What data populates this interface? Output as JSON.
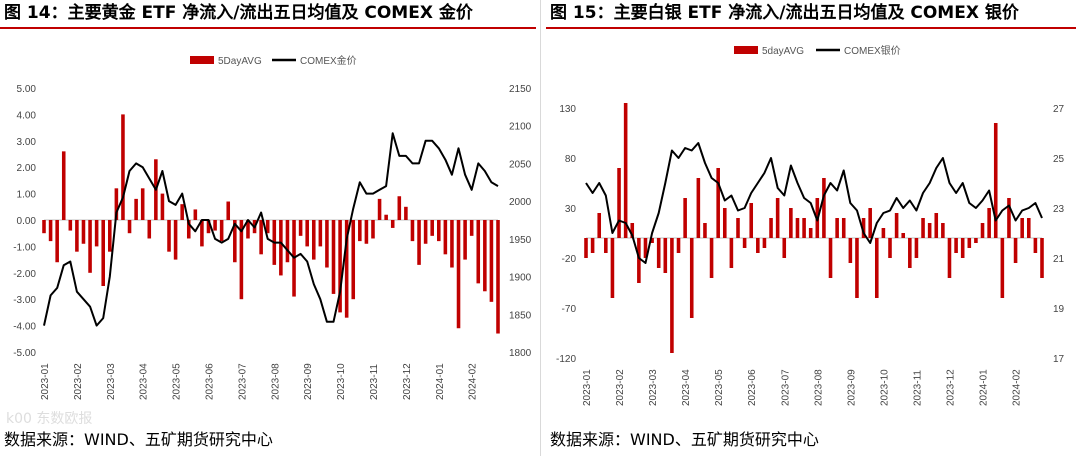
{
  "panels": [
    {
      "title": "图 14：主要黄金 ETF 净流入/流出五日均值及 COMEX 金价",
      "source": "数据来源：WIND、五矿期货研究中心"
    },
    {
      "title": "图 15：主要白银 ETF 净流入/流出五日均值及 COMEX 银价",
      "source": "数据来源：WIND、五矿期货研究中心"
    }
  ],
  "watermark": "k00 东数欧报",
  "chart_data": [
    {
      "type": "bar+line",
      "legend": [
        "5DayAVG",
        "COMEX金价"
      ],
      "legend_position": "top-center",
      "colors": {
        "bar": "#c00000",
        "line": "#000000"
      },
      "x_ticks": [
        "2023-01",
        "2023-02",
        "2023-03",
        "2023-04",
        "2023-05",
        "2023-06",
        "2023-07",
        "2023-08",
        "2023-09",
        "2023-10",
        "2023-11",
        "2023-12",
        "2024-01",
        "2024-02"
      ],
      "y_left": {
        "min": -5,
        "max": 5,
        "ticks": [
          "5.00",
          "4.00",
          "3.00",
          "2.00",
          "1.00",
          "0.00",
          "-1.00",
          "-2.00",
          "-3.00",
          "-4.00",
          "-5.00"
        ]
      },
      "y_right": {
        "min": 1800,
        "max": 2150,
        "ticks": [
          "2150",
          "2100",
          "2050",
          "2000",
          "1950",
          "1900",
          "1850",
          "1800"
        ]
      },
      "series": [
        {
          "name": "5DayAVG",
          "axis": "left",
          "type": "bar",
          "x": [
            0.0,
            0.2,
            0.4,
            0.6,
            0.8,
            1.0,
            1.2,
            1.4,
            1.6,
            1.8,
            2.0,
            2.2,
            2.4,
            2.6,
            2.8,
            3.0,
            3.2,
            3.4,
            3.6,
            3.8,
            4.0,
            4.2,
            4.4,
            4.6,
            4.8,
            5.0,
            5.2,
            5.4,
            5.6,
            5.8,
            6.0,
            6.2,
            6.4,
            6.6,
            6.8,
            7.0,
            7.2,
            7.4,
            7.6,
            7.8,
            8.0,
            8.2,
            8.4,
            8.6,
            8.8,
            9.0,
            9.2,
            9.4,
            9.6,
            9.8,
            10.0,
            10.2,
            10.4,
            10.6,
            10.8,
            11.0,
            11.2,
            11.4,
            11.6,
            11.8,
            12.0,
            12.2,
            12.4,
            12.6,
            12.8,
            13.0,
            13.2,
            13.4,
            13.6,
            13.8
          ],
          "values": [
            -0.5,
            -0.8,
            -1.6,
            2.6,
            -0.4,
            -1.2,
            -0.9,
            -2.0,
            -1.0,
            -2.5,
            -1.2,
            1.2,
            4.0,
            -0.5,
            0.8,
            1.2,
            -0.7,
            2.3,
            1.0,
            -1.2,
            -1.5,
            0.6,
            -0.7,
            0.4,
            -1.0,
            -0.5,
            -0.4,
            -0.8,
            0.7,
            -1.6,
            -3.0,
            -0.7,
            -0.5,
            -1.3,
            -0.5,
            -1.7,
            -2.1,
            -1.6,
            -2.9,
            -0.6,
            -1.0,
            -1.5,
            -1.0,
            -1.8,
            -2.8,
            -3.5,
            -3.7,
            -3.0,
            -0.8,
            -0.9,
            -0.7,
            0.8,
            0.2,
            -0.3,
            0.9,
            0.5,
            -0.8,
            -1.7,
            -0.9,
            -0.6,
            -0.8,
            -1.3,
            -1.8,
            -4.1,
            -1.5,
            -0.6,
            -2.4,
            -2.7,
            -3.1,
            -4.3
          ]
        },
        {
          "name": "COMEX金价",
          "axis": "right",
          "type": "line",
          "x": [
            0.0,
            0.2,
            0.4,
            0.6,
            0.8,
            1.0,
            1.2,
            1.4,
            1.6,
            1.8,
            2.0,
            2.2,
            2.4,
            2.6,
            2.8,
            3.0,
            3.2,
            3.4,
            3.6,
            3.8,
            4.0,
            4.2,
            4.4,
            4.6,
            4.8,
            5.0,
            5.2,
            5.4,
            5.6,
            5.8,
            6.0,
            6.2,
            6.4,
            6.6,
            6.8,
            7.0,
            7.2,
            7.4,
            7.6,
            7.8,
            8.0,
            8.2,
            8.4,
            8.6,
            8.8,
            9.0,
            9.2,
            9.4,
            9.6,
            9.8,
            10.0,
            10.2,
            10.4,
            10.6,
            10.8,
            11.0,
            11.2,
            11.4,
            11.6,
            11.8,
            12.0,
            12.2,
            12.4,
            12.6,
            12.8,
            13.0,
            13.2,
            13.4,
            13.6,
            13.8
          ],
          "values": [
            1835,
            1875,
            1885,
            1915,
            1920,
            1880,
            1870,
            1860,
            1835,
            1845,
            1900,
            1985,
            2005,
            2040,
            2050,
            2045,
            2030,
            2015,
            2040,
            2000,
            1995,
            2010,
            1970,
            1960,
            1975,
            1975,
            1950,
            1945,
            1950,
            1970,
            1960,
            1975,
            1965,
            1985,
            1950,
            1945,
            1945,
            1935,
            1925,
            1930,
            1920,
            1890,
            1870,
            1840,
            1840,
            1880,
            1950,
            1990,
            2025,
            2010,
            2010,
            2015,
            2020,
            2090,
            2060,
            2060,
            2050,
            2050,
            2080,
            2080,
            2070,
            2055,
            2035,
            2070,
            2035,
            2015,
            2050,
            2040,
            2025,
            2020
          ]
        }
      ]
    },
    {
      "type": "bar+line",
      "legend": [
        "5dayAVG",
        "COMEX银价"
      ],
      "legend_position": "top-center",
      "colors": {
        "bar": "#c00000",
        "line": "#000000"
      },
      "x_ticks": [
        "2023-01",
        "2023-02",
        "2023-03",
        "2023-04",
        "2023-05",
        "2023-06",
        "2023-07",
        "2023-08",
        "2023-09",
        "2023-10",
        "2023-11",
        "2023-12",
        "2024-01",
        "2024-02"
      ],
      "y_left": {
        "min": -120,
        "max": 130,
        "ticks": [
          "130",
          "80",
          "30",
          "-20",
          "-70",
          "-120"
        ]
      },
      "y_right": {
        "min": 17,
        "max": 27,
        "ticks": [
          "27",
          "25",
          "23",
          "21",
          "19",
          "17"
        ]
      },
      "series": [
        {
          "name": "5dayAVG",
          "axis": "left",
          "type": "bar",
          "x": [
            0.0,
            0.2,
            0.4,
            0.6,
            0.8,
            1.0,
            1.2,
            1.4,
            1.6,
            1.8,
            2.0,
            2.2,
            2.4,
            2.6,
            2.8,
            3.0,
            3.2,
            3.4,
            3.6,
            3.8,
            4.0,
            4.2,
            4.4,
            4.6,
            4.8,
            5.0,
            5.2,
            5.4,
            5.6,
            5.8,
            6.0,
            6.2,
            6.4,
            6.6,
            6.8,
            7.0,
            7.2,
            7.4,
            7.6,
            7.8,
            8.0,
            8.2,
            8.4,
            8.6,
            8.8,
            9.0,
            9.2,
            9.4,
            9.6,
            9.8,
            10.0,
            10.2,
            10.4,
            10.6,
            10.8,
            11.0,
            11.2,
            11.4,
            11.6,
            11.8,
            12.0,
            12.2,
            12.4,
            12.6,
            12.8,
            13.0,
            13.2,
            13.4,
            13.6,
            13.8
          ],
          "values": [
            -20,
            -15,
            25,
            -15,
            -60,
            70,
            135,
            15,
            -45,
            -20,
            -5,
            -30,
            -35,
            -115,
            -15,
            40,
            -80,
            60,
            15,
            -40,
            70,
            30,
            -30,
            20,
            -10,
            35,
            -15,
            -10,
            20,
            40,
            -20,
            30,
            20,
            20,
            10,
            40,
            60,
            -40,
            20,
            20,
            -25,
            -60,
            20,
            30,
            -60,
            10,
            -20,
            25,
            5,
            -30,
            -20,
            20,
            15,
            25,
            15,
            -40,
            -15,
            -20,
            -10,
            -5,
            15,
            30,
            115,
            -60,
            40,
            -25,
            20,
            20,
            -15,
            -40
          ]
        },
        {
          "name": "COMEX银价",
          "axis": "right",
          "type": "line",
          "x": [
            0.0,
            0.2,
            0.4,
            0.6,
            0.8,
            1.0,
            1.2,
            1.4,
            1.6,
            1.8,
            2.0,
            2.2,
            2.4,
            2.6,
            2.8,
            3.0,
            3.2,
            3.4,
            3.6,
            3.8,
            4.0,
            4.2,
            4.4,
            4.6,
            4.8,
            5.0,
            5.2,
            5.4,
            5.6,
            5.8,
            6.0,
            6.2,
            6.4,
            6.6,
            6.8,
            7.0,
            7.2,
            7.4,
            7.6,
            7.8,
            8.0,
            8.2,
            8.4,
            8.6,
            8.8,
            9.0,
            9.2,
            9.4,
            9.6,
            9.8,
            10.0,
            10.2,
            10.4,
            10.6,
            10.8,
            11.0,
            11.2,
            11.4,
            11.6,
            11.8,
            12.0,
            12.2,
            12.4,
            12.6,
            12.8,
            13.0,
            13.2,
            13.4,
            13.6,
            13.8
          ],
          "values": [
            24.0,
            23.6,
            24.0,
            23.5,
            22.0,
            22.5,
            22.4,
            21.9,
            21.0,
            20.8,
            22.0,
            22.8,
            24.0,
            25.3,
            25.0,
            25.4,
            25.3,
            25.6,
            24.8,
            24.2,
            24.0,
            23.3,
            23.5,
            22.9,
            23.0,
            23.6,
            24.0,
            24.4,
            25.0,
            23.8,
            23.5,
            24.7,
            24.0,
            23.4,
            23.2,
            22.5,
            23.5,
            24.0,
            23.7,
            24.5,
            23.2,
            22.9,
            22.0,
            21.6,
            22.4,
            22.8,
            22.9,
            23.4,
            23.0,
            23.3,
            22.9,
            23.6,
            24.0,
            24.6,
            25.0,
            24.0,
            23.6,
            24.0,
            23.2,
            23.0,
            23.3,
            23.7,
            22.5,
            22.9,
            23.1,
            22.5,
            22.9,
            23.0,
            23.2,
            22.6
          ]
        }
      ]
    }
  ]
}
